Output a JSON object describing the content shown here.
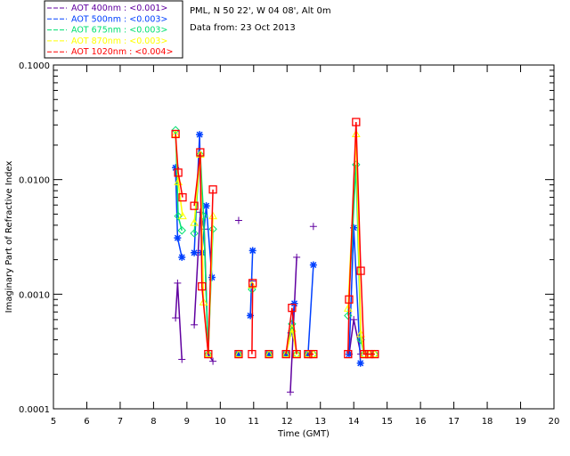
{
  "chart_data": {
    "type": "line",
    "title": "PML, N 50 22', W 04 08', Alt 0m",
    "subtitle": "Data from: 23 Oct 2013",
    "xlabel": "Time (GMT)",
    "ylabel": "Imaginary Part of Refractive Index",
    "xlim": [
      5,
      20
    ],
    "ylim": [
      0.0001,
      0.1
    ],
    "yscale": "log",
    "xticks": [
      "5",
      "6",
      "7",
      "8",
      "9",
      "10",
      "11",
      "12",
      "13",
      "14",
      "15",
      "16",
      "17",
      "18",
      "19",
      "20"
    ],
    "yticks": [
      "0.0001",
      "0.0010",
      "0.0100",
      "0.1000"
    ],
    "legend_position": "top-left",
    "series": [
      {
        "name": "AOT  400nm : <0.001>",
        "color": "#6000a0",
        "marker": "plus",
        "x": [
          8.66,
          8.72,
          8.85,
          null,
          9.22,
          9.4,
          9.52,
          9.64,
          9.78,
          null,
          10.55,
          null,
          10.95,
          null,
          12.1,
          12.29,
          null,
          12.79,
          null,
          13.86,
          14.0,
          14.21
        ],
        "y": [
          0.00062,
          0.00125,
          0.00027,
          null,
          0.00054,
          0.0052,
          0.0037,
          0.0003,
          0.00026,
          null,
          0.0044,
          null,
          0.0013,
          null,
          0.00014,
          0.0021,
          null,
          0.0039,
          null,
          0.0003,
          0.0006,
          0.0003
        ]
      },
      {
        "name": "AOT  500nm : <0.003>",
        "color": "#0040ff",
        "marker": "asterisk",
        "x": [
          8.66,
          8.72,
          8.85,
          null,
          9.22,
          9.38,
          9.45,
          9.58,
          9.75,
          null,
          10.55,
          null,
          10.9,
          10.97,
          null,
          11.46,
          null,
          11.97,
          12.12,
          12.22,
          null,
          12.63,
          12.79,
          null,
          13.86,
          14.0,
          14.2
        ],
        "y": [
          0.0127,
          0.0031,
          0.0021,
          null,
          0.0023,
          0.0247,
          0.0023,
          0.0059,
          0.0014,
          null,
          0.0003,
          null,
          0.00065,
          0.0024,
          null,
          0.0003,
          null,
          0.0003,
          0.00046,
          0.00083,
          null,
          0.0003,
          0.0018,
          null,
          0.0003,
          0.0038,
          0.00025
        ]
      },
      {
        "name": "AOT  675nm : <0.003>",
        "color": "#00e070",
        "marker": "diamond",
        "x": [
          8.66,
          8.74,
          8.85,
          null,
          9.22,
          9.4,
          9.5,
          9.64,
          9.78,
          null,
          10.55,
          null,
          10.95,
          null,
          11.46,
          null,
          11.97,
          12.15,
          12.29,
          null,
          12.63,
          12.79,
          null,
          13.83,
          14.07,
          14.21,
          14.31,
          14.47,
          14.63
        ],
        "y": [
          0.027,
          0.0048,
          0.0036,
          null,
          0.0034,
          0.0165,
          0.0048,
          0.0003,
          0.0037,
          null,
          0.0003,
          null,
          0.0011,
          null,
          0.0003,
          null,
          0.0003,
          0.00055,
          0.0003,
          null,
          0.0003,
          0.0003,
          null,
          0.00065,
          0.0135,
          0.0004,
          0.0003,
          0.0003,
          0.0003
        ]
      },
      {
        "name": "AOT  870nm : <0.003>",
        "color": "#ffff00",
        "marker": "triangle",
        "x": [
          8.66,
          8.74,
          8.87,
          null,
          9.22,
          9.4,
          9.5,
          9.64,
          9.78,
          null,
          10.55,
          null,
          10.95,
          null,
          11.46,
          null,
          11.97,
          12.15,
          12.29,
          null,
          12.63,
          12.79,
          null,
          13.83,
          14.07,
          14.21,
          14.31,
          14.47,
          14.63
        ],
        "y": [
          0.025,
          0.0095,
          0.0048,
          null,
          0.0042,
          0.0165,
          0.00085,
          0.0003,
          0.0048,
          null,
          0.0003,
          null,
          0.0012,
          null,
          0.0003,
          null,
          0.0003,
          0.0005,
          0.0003,
          null,
          0.0003,
          0.0003,
          null,
          0.00075,
          0.025,
          0.00045,
          0.0003,
          0.0003,
          0.0003
        ]
      },
      {
        "name": "AOT 1020nm : <0.004>",
        "color": "#ff0000",
        "marker": "square",
        "x": [
          8.66,
          8.74,
          8.87,
          null,
          9.22,
          9.4,
          9.45,
          9.64,
          9.78,
          null,
          10.55,
          null,
          10.95,
          10.97,
          null,
          11.46,
          null,
          11.97,
          12.15,
          12.29,
          null,
          12.63,
          12.79,
          null,
          13.83,
          13.86,
          14.07,
          14.21,
          14.31,
          14.47,
          14.63
        ],
        "y": [
          0.025,
          0.0115,
          0.007,
          null,
          0.0059,
          0.0173,
          0.00117,
          0.0003,
          0.0082,
          null,
          0.0003,
          null,
          0.0003,
          0.00125,
          null,
          0.0003,
          null,
          0.0003,
          0.00076,
          0.0003,
          null,
          0.0003,
          0.0003,
          null,
          0.0003,
          0.0009,
          0.0318,
          0.0016,
          0.0003,
          0.0003,
          0.0003
        ]
      }
    ]
  }
}
